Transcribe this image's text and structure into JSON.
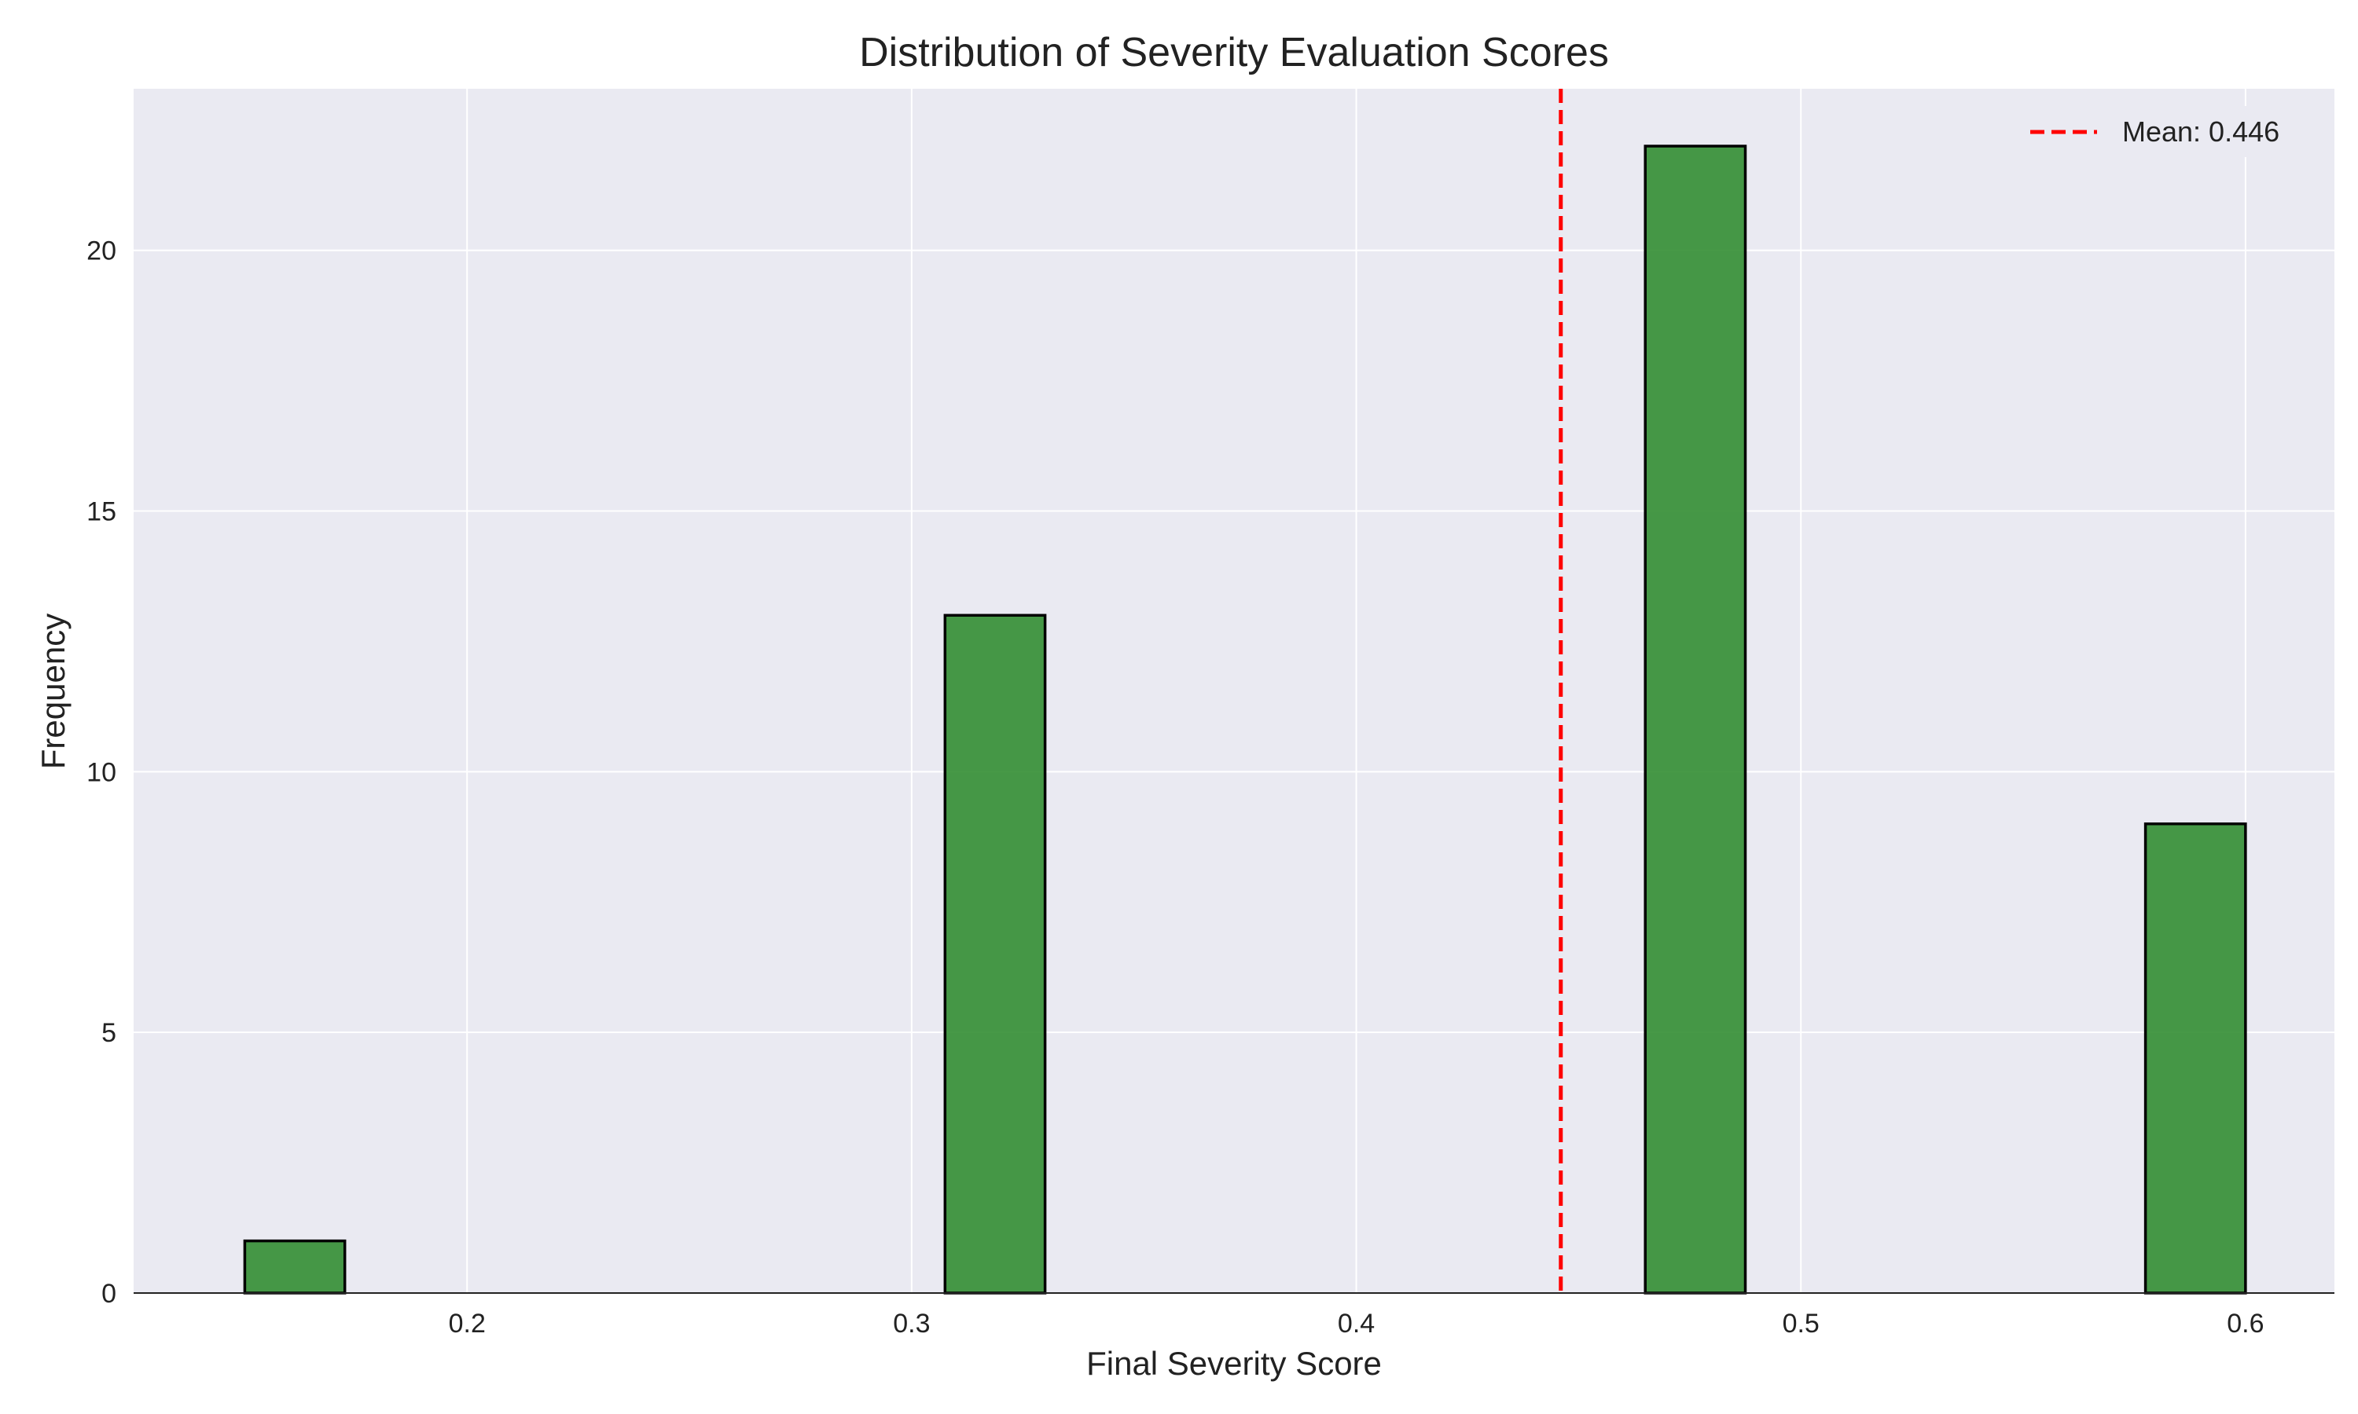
{
  "chart_data": {
    "type": "bar",
    "title": "Distribution of Severity Evaluation Scores",
    "xlabel": "Final Severity Score",
    "ylabel": "Frequency",
    "xlim": [
      0.125,
      0.62
    ],
    "ylim": [
      0,
      23.1
    ],
    "xticks": [
      0.2,
      0.3,
      0.4,
      0.5,
      0.6
    ],
    "xtick_labels": [
      "0.2",
      "0.3",
      "0.4",
      "0.5",
      "0.6"
    ],
    "yticks": [
      0,
      5,
      10,
      15,
      20
    ],
    "ytick_labels": [
      "0",
      "5",
      "10",
      "15",
      "20"
    ],
    "bin_width": 0.0225,
    "bins": [
      {
        "x0": 0.15,
        "x1": 0.1725,
        "value": 1
      },
      {
        "x0": 0.3075,
        "x1": 0.33,
        "value": 13
      },
      {
        "x0": 0.465,
        "x1": 0.4875,
        "value": 22
      },
      {
        "x0": 0.5775,
        "x1": 0.6,
        "value": 9
      }
    ],
    "mean_line": {
      "x": 0.446,
      "label": "Mean: 0.446",
      "color": "#ff0000",
      "style": "dashed"
    },
    "legend": {
      "position": "top-right",
      "entries": [
        "Mean: 0.446"
      ]
    },
    "grid": true,
    "colors": {
      "bar_fill": "#2e8b2e",
      "bar_edge": "#000000",
      "plot_background": "#eaeaf2",
      "grid": "#ffffff"
    }
  }
}
